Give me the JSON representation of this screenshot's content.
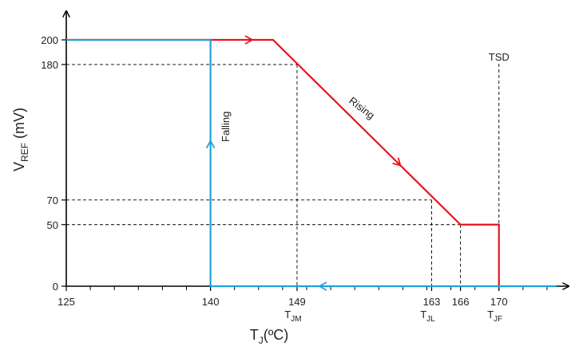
{
  "chart_data": {
    "type": "line",
    "xlabel": {
      "main": "T",
      "sub": "J",
      "suffix": "(ºC)"
    },
    "ylabel": {
      "main": "V",
      "sub": "REF",
      "suffix": " (mV)"
    },
    "x_ticks": [
      {
        "value": 125,
        "label": "125",
        "sub": ""
      },
      {
        "value": 140,
        "label": "140",
        "sub": ""
      },
      {
        "value": 149,
        "label": "149",
        "sub": "JM"
      },
      {
        "value": 163,
        "label": "163",
        "sub": "JL"
      },
      {
        "value": 166,
        "label": "166",
        "sub": ""
      },
      {
        "value": 170,
        "label": "170",
        "sub": "JF"
      }
    ],
    "x_sub_prefix": "T",
    "y_ticks": [
      0,
      50,
      70,
      180,
      200
    ],
    "xlim": [
      125,
      176
    ],
    "ylim": [
      0,
      200
    ],
    "series": [
      {
        "name": "Rising",
        "color": "#e8141b",
        "points": [
          [
            125,
            200
          ],
          [
            146.5,
            200
          ],
          [
            166,
            50
          ],
          [
            170,
            50
          ],
          [
            170,
            0
          ]
        ]
      },
      {
        "name": "Falling",
        "color": "#1fa2dc",
        "points": [
          [
            176,
            0
          ],
          [
            140,
            0
          ],
          [
            140,
            200
          ],
          [
            125,
            200
          ]
        ]
      }
    ],
    "annotations": [
      {
        "text": "TSD",
        "x": 170
      }
    ],
    "guides": [
      {
        "x": 149,
        "y": 180
      },
      {
        "x": 163,
        "y": 70
      },
      {
        "x": 166,
        "y": 50
      }
    ]
  }
}
